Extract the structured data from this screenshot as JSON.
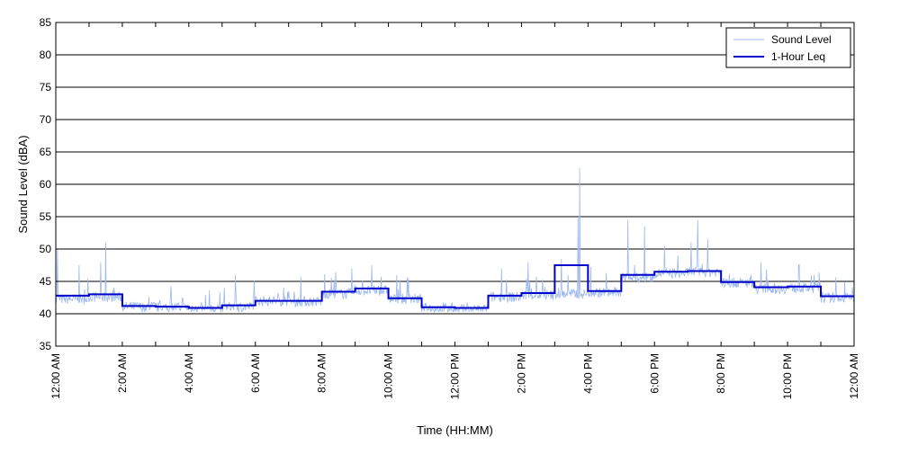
{
  "chart_data": {
    "type": "line",
    "title": "",
    "xlabel": "Time (HH:MM)",
    "ylabel": "Sound Level (dBA)",
    "xlim": [
      0,
      24
    ],
    "ylim": [
      35,
      85
    ],
    "y_ticks": [
      35,
      40,
      45,
      50,
      55,
      60,
      65,
      70,
      75,
      80,
      85
    ],
    "y_grid": true,
    "x_grid": false,
    "x_tick_hours": [
      0,
      2,
      4,
      6,
      8,
      10,
      12,
      14,
      16,
      18,
      20,
      22,
      24
    ],
    "x_tick_labels": [
      "12:00 AM",
      "2:00 AM",
      "4:00 AM",
      "6:00 AM",
      "8:00 AM",
      "10:00 AM",
      "12:00 PM",
      "2:00 PM",
      "4:00 PM",
      "6:00 PM",
      "8:00 PM",
      "10:00 PM",
      "12:00 AM"
    ],
    "x_minor_tick_hours": [
      1,
      3,
      5,
      7,
      9,
      11,
      13,
      15,
      17,
      19,
      21,
      23
    ],
    "legend_position": "top-right",
    "colors": {
      "sound_level": "#9db8ee",
      "leq": "#0000cc",
      "grid": "#000000"
    },
    "series": [
      {
        "name": "Sound Level",
        "style": "thin-line",
        "hourly_base": [
          42.2,
          42.5,
          41.0,
          40.9,
          40.6,
          41.0,
          41.9,
          41.8,
          43.0,
          43.5,
          42.2,
          40.8,
          40.6,
          42.5,
          42.8,
          43.0,
          43.2,
          45.5,
          46.2,
          46.4,
          44.7,
          43.8,
          43.9,
          42.4
        ],
        "peaks": [
          {
            "hour": 0.05,
            "value": 50.0
          },
          {
            "hour": 0.7,
            "value": 47.5
          },
          {
            "hour": 1.5,
            "value": 51.0
          },
          {
            "hour": 1.35,
            "value": 48.0
          },
          {
            "hour": 5.4,
            "value": 46.0
          },
          {
            "hour": 8.9,
            "value": 47.0
          },
          {
            "hour": 9.5,
            "value": 47.5
          },
          {
            "hour": 10.6,
            "value": 45.5
          },
          {
            "hour": 13.4,
            "value": 47.0
          },
          {
            "hour": 14.2,
            "value": 48.0
          },
          {
            "hour": 15.2,
            "value": 48.5
          },
          {
            "hour": 15.4,
            "value": 46.0
          },
          {
            "hour": 15.75,
            "value": 62.5
          },
          {
            "hour": 15.7,
            "value": 55.0
          },
          {
            "hour": 17.2,
            "value": 54.5
          },
          {
            "hour": 17.7,
            "value": 53.5
          },
          {
            "hour": 18.3,
            "value": 50.5
          },
          {
            "hour": 18.7,
            "value": 49.0
          },
          {
            "hour": 19.1,
            "value": 51.0
          },
          {
            "hour": 19.3,
            "value": 54.5
          },
          {
            "hour": 19.6,
            "value": 51.5
          },
          {
            "hour": 21.2,
            "value": 48.0
          },
          {
            "hour": 22.8,
            "value": 46.0
          }
        ]
      },
      {
        "name": "1-Hour Leq",
        "style": "step",
        "hours": [
          0,
          1,
          2,
          3,
          4,
          5,
          6,
          7,
          8,
          9,
          10,
          11,
          12,
          13,
          14,
          15,
          16,
          17,
          18,
          19,
          20,
          21,
          22,
          23
        ],
        "values": [
          42.8,
          43.0,
          41.2,
          41.1,
          40.9,
          41.3,
          42.0,
          42.0,
          43.4,
          43.9,
          42.4,
          41.0,
          40.9,
          42.8,
          43.2,
          47.5,
          43.5,
          46.0,
          46.5,
          46.6,
          44.9,
          44.1,
          44.2,
          42.7
        ]
      }
    ]
  }
}
